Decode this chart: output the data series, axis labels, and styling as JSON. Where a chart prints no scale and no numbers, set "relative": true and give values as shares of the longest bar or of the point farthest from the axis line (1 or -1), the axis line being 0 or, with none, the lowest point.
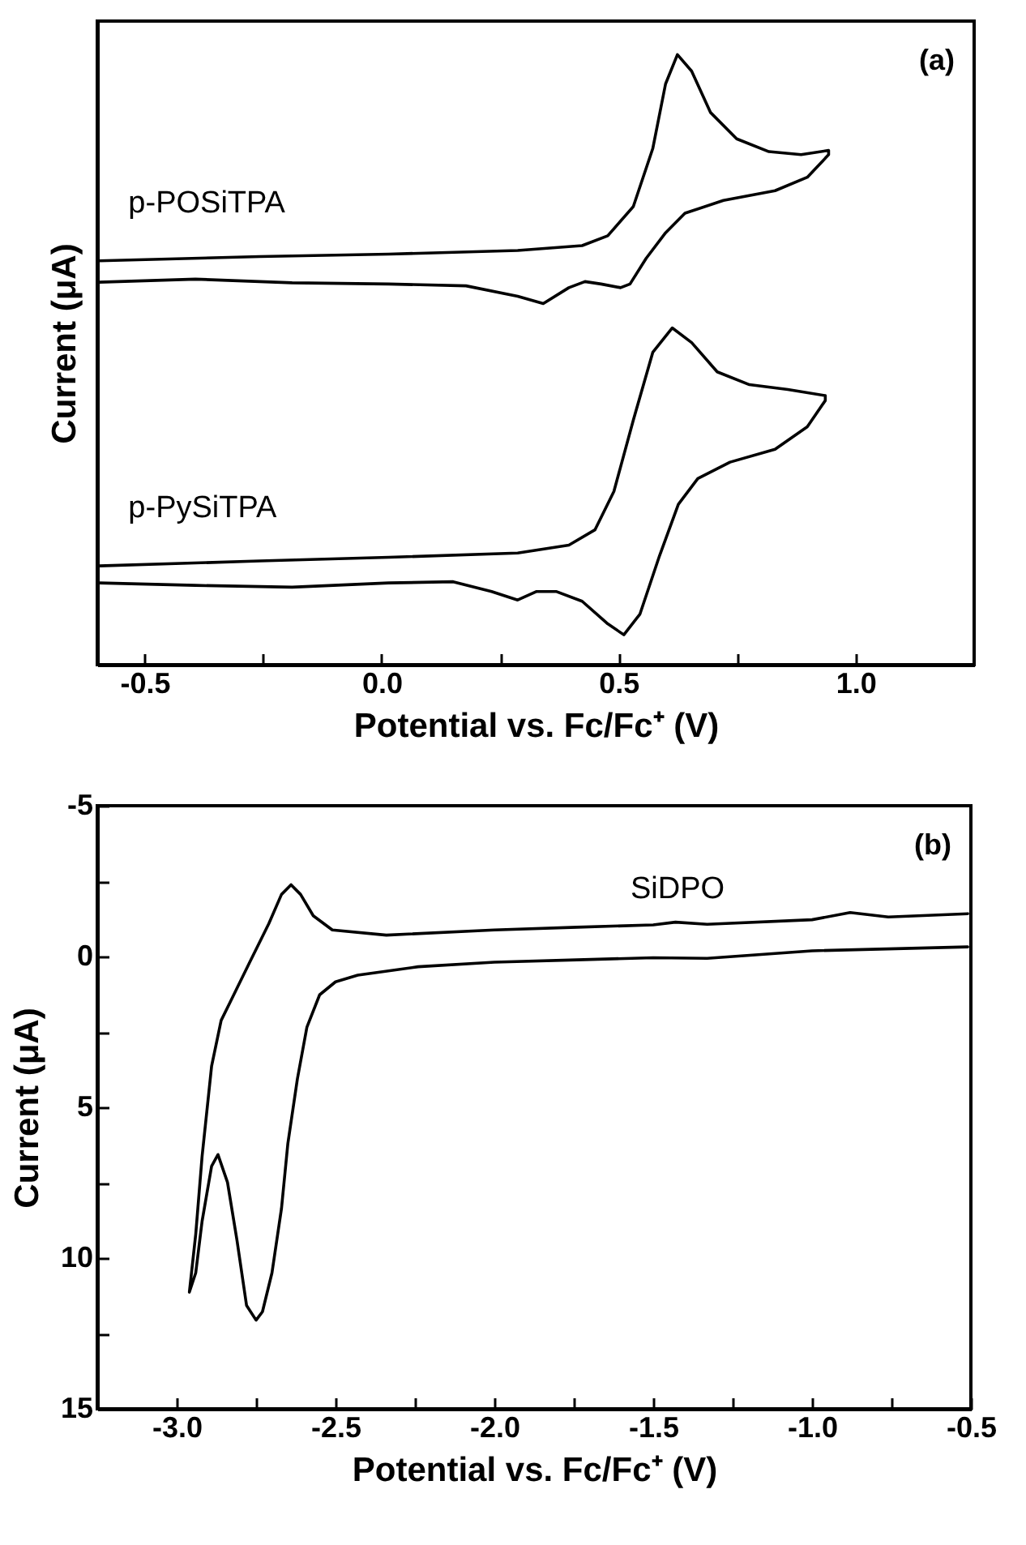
{
  "chart_data": [
    {
      "type": "line",
      "relative": true,
      "tick_labels": "x",
      "xlabel": "Potential vs. Fc/Fc⁺ (V)",
      "ylabel": "Current (μA)",
      "annotations": [
        "(a)"
      ],
      "xlim": [
        -0.6,
        1.25
      ],
      "xticks": [
        {
          "value": -0.5,
          "label": "-0.5"
        },
        {
          "value": -0.25,
          "label": null
        },
        {
          "value": 0,
          "label": "0.0"
        },
        {
          "value": 0.25,
          "label": null
        },
        {
          "value": 0.5,
          "label": "0.5"
        },
        {
          "value": 0.75,
          "label": null
        },
        {
          "value": 1,
          "label": "1.0"
        }
      ],
      "series": [
        {
          "name": "p-POSiTPA",
          "color": "#000000",
          "x": [
            -0.596,
            -0.257,
            0.015,
            0.287,
            0.423,
            0.477,
            0.531,
            0.572,
            0.599,
            0.624,
            0.654,
            0.694,
            0.749,
            0.817,
            0.885,
            0.943,
            0.943,
            0.898,
            0.83,
            0.721,
            0.64,
            0.599,
            0.558,
            0.524,
            0.504,
            0.463,
            0.429,
            0.395,
            0.341,
            0.287,
            0.178,
            0.015,
            -0.189,
            -0.393,
            -0.596
          ],
          "values": [
            0.662,
            0.669,
            0.673,
            0.679,
            0.687,
            0.703,
            0.751,
            0.846,
            0.952,
            1.0,
            0.973,
            0.905,
            0.862,
            0.841,
            0.836,
            0.843,
            0.836,
            0.799,
            0.777,
            0.761,
            0.74,
            0.708,
            0.666,
            0.624,
            0.618,
            0.624,
            0.628,
            0.618,
            0.592,
            0.604,
            0.621,
            0.624,
            0.626,
            0.632,
            0.627
          ]
        },
        {
          "name": "p-PySiTPA",
          "color": "#000000",
          "x": [
            -0.596,
            -0.257,
            0.015,
            0.287,
            0.395,
            0.45,
            0.49,
            0.531,
            0.572,
            0.613,
            0.654,
            0.708,
            0.776,
            0.857,
            0.936,
            0.936,
            0.898,
            0.83,
            0.735,
            0.667,
            0.626,
            0.586,
            0.545,
            0.511,
            0.477,
            0.423,
            0.368,
            0.327,
            0.287,
            0.232,
            0.151,
            0.015,
            -0.189,
            -0.393,
            -0.596
          ],
          "values": [
            0.162,
            0.17,
            0.176,
            0.183,
            0.196,
            0.221,
            0.284,
            0.401,
            0.512,
            0.552,
            0.528,
            0.48,
            0.459,
            0.451,
            0.441,
            0.433,
            0.39,
            0.353,
            0.332,
            0.305,
            0.263,
            0.178,
            0.083,
            0.049,
            0.067,
            0.104,
            0.12,
            0.12,
            0.106,
            0.12,
            0.136,
            0.134,
            0.127,
            0.13,
            0.134
          ]
        }
      ]
    },
    {
      "type": "line",
      "xlabel": "Potential vs. Fc/Fc⁺ (V)",
      "ylabel": "Current (μA)",
      "annotations": [
        "(b)"
      ],
      "xlim": [
        -3.25,
        -0.5
      ],
      "xticks": [
        {
          "value": -3,
          "label": "-3.0"
        },
        {
          "value": -2.75,
          "label": null
        },
        {
          "value": -2.5,
          "label": "-2.5"
        },
        {
          "value": -2.25,
          "label": null
        },
        {
          "value": -2,
          "label": "-2.0"
        },
        {
          "value": -1.75,
          "label": null
        },
        {
          "value": -1.5,
          "label": "-1.5"
        },
        {
          "value": -1.25,
          "label": null
        },
        {
          "value": -1,
          "label": "-1.0"
        },
        {
          "value": -0.75,
          "label": null
        },
        {
          "value": -0.5,
          "label": "-0.5"
        }
      ],
      "ylim": [
        15,
        -5
      ],
      "yticks": [
        -5,
        {
          "value": -2.5,
          "label": null
        },
        0,
        {
          "value": 2.5,
          "label": null
        },
        5,
        {
          "value": 7.5,
          "label": null
        },
        10,
        {
          "value": 12.5,
          "label": null
        },
        15
      ],
      "series": [
        {
          "name": "SiDPO",
          "color": "#000000",
          "x": [
            -0.51,
            -1.0,
            -1.33,
            -1.5,
            -1.74,
            -2.0,
            -2.24,
            -2.43,
            -2.5,
            -2.55,
            -2.59,
            -2.62,
            -2.65,
            -2.67,
            -2.7,
            -2.73,
            -2.75,
            -2.78,
            -2.81,
            -2.84,
            -2.87,
            -2.89,
            -2.92,
            -2.94,
            -2.96,
            -2.94,
            -2.92,
            -2.89,
            -2.86,
            -2.83,
            -2.77,
            -2.71,
            -2.67,
            -2.64,
            -2.61,
            -2.57,
            -2.51,
            -2.34,
            -2.0,
            -1.74,
            -1.5,
            -1.43,
            -1.33,
            -1.0,
            -0.88,
            -0.76,
            -0.51
          ],
          "values": [
            -0.32,
            -0.19,
            0.06,
            0.04,
            0.11,
            0.19,
            0.34,
            0.62,
            0.84,
            1.27,
            2.34,
            4.06,
            6.2,
            8.35,
            10.49,
            11.78,
            12.06,
            11.57,
            9.42,
            7.49,
            6.57,
            6.95,
            8.78,
            10.49,
            11.13,
            9.21,
            6.63,
            3.63,
            2.12,
            1.48,
            0.19,
            -1.09,
            -2.06,
            -2.38,
            -2.06,
            -1.35,
            -0.88,
            -0.71,
            -0.88,
            -0.97,
            -1.05,
            -1.14,
            -1.07,
            -1.22,
            -1.46,
            -1.31,
            -1.42
          ]
        }
      ]
    }
  ]
}
